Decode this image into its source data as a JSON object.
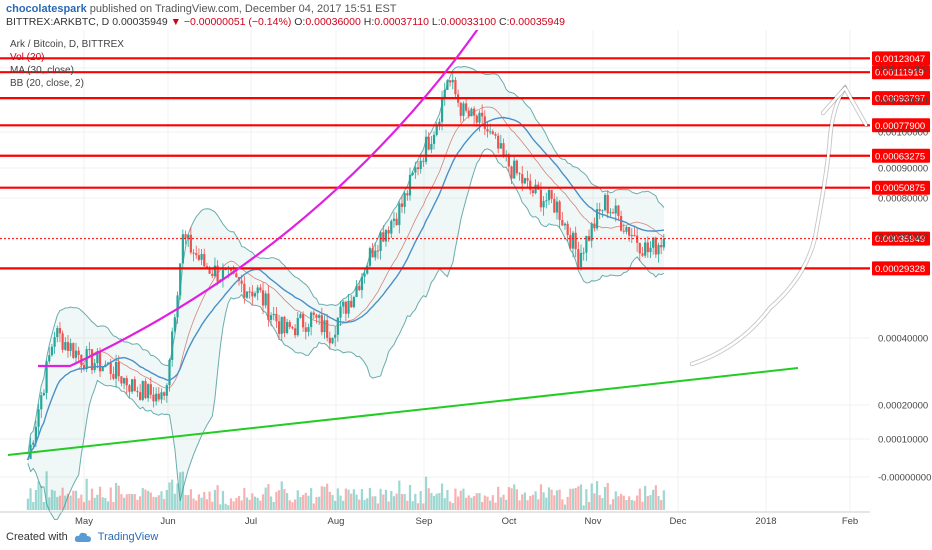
{
  "header": {
    "author": "chocolatespark",
    "published_text": "published on TradingView.com, December 04, 2017 15:51 EST"
  },
  "quote": {
    "symbol": "BITTREX:ARKBTC, D",
    "last": "0.00035949",
    "change": "▼ −0.00000051 (−0.14%)",
    "open_label": "O:",
    "open": "0.00036000",
    "high_label": "H:",
    "high": "0.00037110",
    "low_label": "L:",
    "low": "0.00033100",
    "close_label": "C:",
    "close": "0.00035949"
  },
  "legend": {
    "title": "Ark / Bitcoin, D, BITTREX",
    "vol": "Vol (20)",
    "ma": "MA (30, close)",
    "bb": "BB (20, close, 2)"
  },
  "footer": {
    "created_with": "Created with",
    "brand": "TradingView"
  },
  "colors": {
    "up": "#26a69a",
    "down": "#ef5350",
    "resistance": "#ff0000",
    "trendline": "#22cc22",
    "parabola": "#e020e0",
    "ma": "#4a90c8",
    "bb": "#2e8b8b",
    "projection": "#ffffff"
  },
  "chart_data": {
    "type": "candlestick",
    "y_axis_scale": "logarithmic",
    "x_tick_labels": [
      "May",
      "Jun",
      "Jul",
      "Aug",
      "Sep",
      "Oct",
      "Nov",
      "Dec",
      "2018",
      "Feb"
    ],
    "y_tick_labels": [
      "0.00120000",
      "0.00110000",
      "0.00100000",
      "0.00090000",
      "0.00080000",
      "0.00070000",
      "0.00040000",
      "0.00020000",
      "0.00010000",
      "-0.00000000"
    ],
    "price_lines": [
      {
        "value": 0.00123047,
        "label": "0.00123047",
        "style": "solid"
      },
      {
        "value": 0.00111919,
        "label": "0.00111919",
        "style": "solid"
      },
      {
        "value": 0.00093797,
        "label": "0.00093797",
        "style": "solid"
      },
      {
        "value": 0.000779,
        "label": "0.00077900",
        "style": "solid"
      },
      {
        "value": 0.00063275,
        "label": "0.00063275",
        "style": "solid"
      },
      {
        "value": 0.00050875,
        "label": "0.00050875",
        "style": "solid"
      },
      {
        "value": 0.00035949,
        "label": "0.00035949",
        "style": "dotted"
      },
      {
        "value": 0.00029328,
        "label": "0.00029328",
        "style": "solid"
      }
    ],
    "close_series": [
      {
        "date": "2017-04-10",
        "close": 8e-05
      },
      {
        "date": "2017-04-20",
        "close": 0.00019
      },
      {
        "date": "2017-04-30",
        "close": 0.00016
      },
      {
        "date": "2017-05-10",
        "close": 0.00015
      },
      {
        "date": "2017-05-20",
        "close": 0.00013
      },
      {
        "date": "2017-05-31",
        "close": 0.00012
      },
      {
        "date": "2017-06-07",
        "close": 0.00036
      },
      {
        "date": "2017-06-15",
        "close": 0.0003
      },
      {
        "date": "2017-06-25",
        "close": 0.00027
      },
      {
        "date": "2017-07-05",
        "close": 0.00025
      },
      {
        "date": "2017-07-15",
        "close": 0.00019
      },
      {
        "date": "2017-07-25",
        "close": 0.00021
      },
      {
        "date": "2017-08-01",
        "close": 0.00019
      },
      {
        "date": "2017-08-10",
        "close": 0.00025
      },
      {
        "date": "2017-08-18",
        "close": 0.00035
      },
      {
        "date": "2017-08-28",
        "close": 0.00045
      },
      {
        "date": "2017-09-03",
        "close": 0.0006
      },
      {
        "date": "2017-09-10",
        "close": 0.0008
      },
      {
        "date": "2017-09-14",
        "close": 0.00108
      },
      {
        "date": "2017-09-20",
        "close": 0.00085
      },
      {
        "date": "2017-09-28",
        "close": 0.00077
      },
      {
        "date": "2017-10-05",
        "close": 0.00062
      },
      {
        "date": "2017-10-15",
        "close": 0.0005
      },
      {
        "date": "2017-10-25",
        "close": 0.00045
      },
      {
        "date": "2017-11-02",
        "close": 0.00032
      },
      {
        "date": "2017-11-12",
        "close": 0.00046
      },
      {
        "date": "2017-11-20",
        "close": 0.00039
      },
      {
        "date": "2017-11-28",
        "close": 0.00033
      },
      {
        "date": "2017-12-04",
        "close": 0.00035949
      }
    ]
  }
}
